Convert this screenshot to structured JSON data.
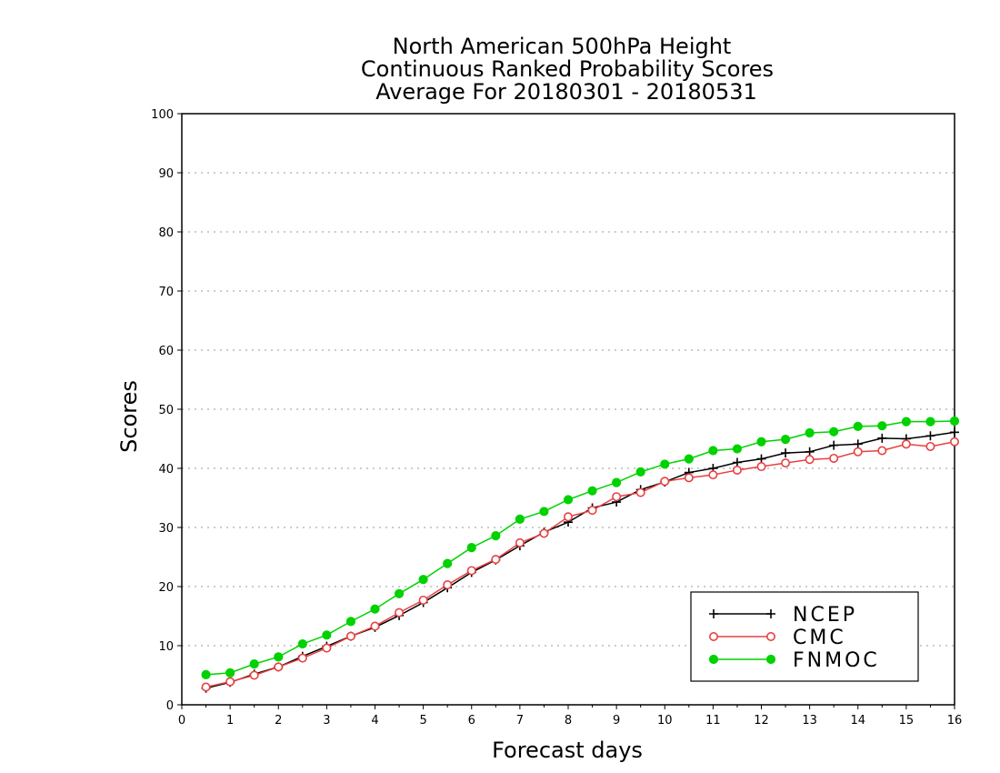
{
  "chart_data": {
    "type": "line",
    "title": [
      "North American 500hPa Height",
      "Continuous Ranked Probability Scores",
      "Average For 20180301 - 20180531"
    ],
    "xlabel": "Forecast days",
    "ylabel": "Scores",
    "xlim": [
      0,
      16
    ],
    "ylim": [
      0,
      100
    ],
    "x_ticks": [
      0,
      1,
      2,
      3,
      4,
      5,
      6,
      7,
      8,
      9,
      10,
      11,
      12,
      13,
      14,
      15,
      16
    ],
    "y_ticks": [
      0,
      10,
      20,
      30,
      40,
      50,
      60,
      70,
      80,
      90,
      100
    ],
    "grid": "horizontal dotted",
    "legend_position": "bottom-right",
    "x": [
      0.5,
      1,
      1.5,
      2,
      2.5,
      3,
      3.5,
      4,
      4.5,
      5,
      5.5,
      6,
      6.5,
      7,
      7.5,
      8,
      8.5,
      9,
      9.5,
      10,
      10.5,
      11,
      11.5,
      12,
      12.5,
      13,
      13.5,
      14,
      14.5,
      15,
      15.5,
      16
    ],
    "series": [
      {
        "name": "NCEP",
        "color": "#000000",
        "marker": "plus",
        "values": [
          2.8,
          3.8,
          5.2,
          6.4,
          8.2,
          9.9,
          11.6,
          13.1,
          15.1,
          17.3,
          19.8,
          22.4,
          24.5,
          26.9,
          29.2,
          30.9,
          33.3,
          34.3,
          36.4,
          37.7,
          39.3,
          40.0,
          41.0,
          41.6,
          42.6,
          42.8,
          43.9,
          44.1,
          45.1,
          45.0,
          45.5,
          46.1
        ]
      },
      {
        "name": "CMC",
        "color": "#e84040",
        "marker": "open-circle",
        "values": [
          3.0,
          3.9,
          5.0,
          6.4,
          7.9,
          9.6,
          11.6,
          13.3,
          15.6,
          17.7,
          20.3,
          22.7,
          24.6,
          27.4,
          29.0,
          31.8,
          32.9,
          35.2,
          35.9,
          37.8,
          38.4,
          38.9,
          39.7,
          40.3,
          40.9,
          41.5,
          41.7,
          42.8,
          43.0,
          44.1,
          43.7,
          44.5
        ]
      },
      {
        "name": "FNMOC",
        "color": "#00d200",
        "marker": "filled-circle",
        "values": [
          5.1,
          5.4,
          6.9,
          8.1,
          10.3,
          11.8,
          14.1,
          16.2,
          18.8,
          21.2,
          23.9,
          26.6,
          28.6,
          31.4,
          32.7,
          34.7,
          36.2,
          37.6,
          39.4,
          40.7,
          41.6,
          43.0,
          43.3,
          44.5,
          44.9,
          46.0,
          46.2,
          47.1,
          47.2,
          47.9,
          47.9,
          48.0
        ]
      }
    ]
  }
}
